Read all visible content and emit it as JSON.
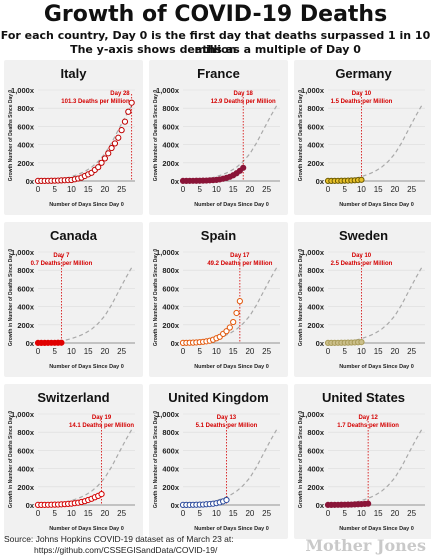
{
  "header": {
    "title": "Growth of COVID-19 Deaths",
    "subtitle_1": "For each country, Day 0 is the first day that deaths surpassed 1 in 10 million",
    "subtitle_2": "The y-axis shows deaths as a multiple of Day 0"
  },
  "footer": {
    "source_line_1": "Source: Johns Hopkins COVID-19 dataset as of March 23 at:",
    "source_line_2": "https://github.com/CSSEGISandData/COVID-19/",
    "brand": "Mother Jones"
  },
  "colors": {
    "marker": "#d40000",
    "reference_curve": "#aaaaaa",
    "panel_background": "#f1f1f1"
  },
  "chart_data": [
    {
      "type": "scatter",
      "title": "Italy",
      "xlabel": "Number of Days Since Day 0",
      "ylabel": "Growth Number of Deaths Since Day 0",
      "xlim": [
        0,
        29
      ],
      "ylim": [
        0,
        1000
      ],
      "xticks": [
        0,
        5,
        10,
        15,
        20,
        25
      ],
      "yticks": [
        0,
        200,
        400,
        600,
        800,
        1000
      ],
      "ytick_labels": [
        "0x",
        "200x",
        "400x",
        "600x",
        "800x",
        "1,000x"
      ],
      "annotation_day": "Day 28",
      "annotation_text": "101.3 Deaths per Million",
      "marker_color": "#c00000",
      "marker_fill": "#ffffff",
      "series": [
        {
          "x": [
            0,
            1,
            2,
            3,
            4,
            5,
            6,
            7,
            8,
            9,
            10,
            11,
            12,
            13,
            14,
            15,
            16,
            17,
            18,
            19,
            20,
            21,
            22,
            23,
            24,
            25,
            26,
            27,
            28
          ],
          "y": [
            1,
            1.2,
            1.6,
            1.9,
            2.5,
            3.4,
            5,
            6.5,
            8.5,
            10,
            11,
            19,
            27,
            37,
            55,
            73,
            90,
            122,
            152,
            200,
            248,
            304,
            362,
            413,
            475,
            559,
            652,
            761,
            860
          ]
        }
      ]
    },
    {
      "type": "scatter",
      "title": "France",
      "xlabel": "Number of Days Since Day 0",
      "ylabel": "Growth Number of Deaths Since Day 0",
      "xlim": [
        0,
        29
      ],
      "ylim": [
        0,
        1000
      ],
      "xticks": [
        0,
        5,
        10,
        15,
        20,
        25
      ],
      "yticks": [
        0,
        200,
        400,
        600,
        800,
        1000
      ],
      "ytick_labels": [
        "0x",
        "200x",
        "400x",
        "600x",
        "800x",
        "1,000x"
      ],
      "annotation_day": "Day 18",
      "annotation_text": "12.9 Deaths per Million",
      "marker_color": "#8a1538",
      "marker_fill": "#8a1538",
      "series": [
        {
          "x": [
            0,
            1,
            2,
            3,
            4,
            5,
            6,
            7,
            8,
            9,
            10,
            11,
            12,
            13,
            14,
            15,
            16,
            17,
            18
          ],
          "y": [
            1,
            1.2,
            1.5,
            2,
            2.5,
            3,
            4,
            5,
            7,
            9,
            12,
            17,
            25,
            34,
            46,
            63,
            85,
            112,
            145
          ]
        }
      ]
    },
    {
      "type": "scatter",
      "title": "Germany",
      "xlabel": "Number of Days Since Day 0",
      "ylabel": "Growth Number of Deaths Since Day 0",
      "xlim": [
        0,
        29
      ],
      "ylim": [
        0,
        1000
      ],
      "xticks": [
        0,
        5,
        10,
        15,
        20,
        25
      ],
      "yticks": [
        0,
        200,
        400,
        600,
        800,
        1000
      ],
      "ytick_labels": [
        "0x",
        "200x",
        "400x",
        "600x",
        "800x",
        "1,000x"
      ],
      "annotation_day": "Day 10",
      "annotation_text": "1.5 Deaths per Million",
      "marker_color": "#6b5a00",
      "marker_fill": "#e8c12c",
      "series": [
        {
          "x": [
            0,
            1,
            2,
            3,
            4,
            5,
            6,
            7,
            8,
            9,
            10
          ],
          "y": [
            1,
            1.3,
            1.6,
            2,
            2.6,
            3.3,
            4.4,
            5.7,
            7.5,
            10,
            13
          ]
        }
      ]
    },
    {
      "type": "scatter",
      "title": "Canada",
      "xlabel": "Number of Days Since Day 0",
      "ylabel": "Growth in Number of Deaths Since Day 0",
      "xlim": [
        0,
        29
      ],
      "ylim": [
        0,
        1000
      ],
      "xticks": [
        0,
        5,
        10,
        15,
        20,
        25
      ],
      "yticks": [
        0,
        200,
        400,
        600,
        800,
        1000
      ],
      "ytick_labels": [
        "0x",
        "200x",
        "400x",
        "600x",
        "800x",
        "1,000x"
      ],
      "annotation_day": "Day 7",
      "annotation_text": "0.7 Deaths per Million",
      "marker_color": "#e00000",
      "marker_fill": "#e00000",
      "series": [
        {
          "x": [
            0,
            1,
            2,
            3,
            4,
            5,
            6,
            7
          ],
          "y": [
            1,
            1,
            1.3,
            1.5,
            1.8,
            2.2,
            2.6,
            3
          ]
        }
      ]
    },
    {
      "type": "scatter",
      "title": "Spain",
      "xlabel": "Number of Days Since Day 0",
      "ylabel": "Growth in Number of Deaths Since Day 0",
      "xlim": [
        0,
        29
      ],
      "ylim": [
        0,
        1000
      ],
      "xticks": [
        0,
        5,
        10,
        15,
        20,
        25
      ],
      "yticks": [
        0,
        200,
        400,
        600,
        800,
        1000
      ],
      "ytick_labels": [
        "0x",
        "200x",
        "400x",
        "600x",
        "800x",
        "1,000x"
      ],
      "annotation_day": "Day 17",
      "annotation_text": "49.2 Deaths per Million",
      "marker_color": "#e2570a",
      "marker_fill": "#ffffff",
      "series": [
        {
          "x": [
            0,
            1,
            2,
            3,
            4,
            5,
            6,
            7,
            8,
            9,
            10,
            11,
            12,
            13,
            14,
            15,
            16,
            17
          ],
          "y": [
            1,
            2,
            3,
            4,
            6,
            9,
            13,
            18,
            25,
            36,
            52,
            68,
            100,
            130,
            170,
            230,
            330,
            460
          ]
        }
      ]
    },
    {
      "type": "scatter",
      "title": "Sweden",
      "xlabel": "Number of Days Since Day 0",
      "ylabel": "Growth in Number of Deaths Since Day 0",
      "xlim": [
        0,
        29
      ],
      "ylim": [
        0,
        1000
      ],
      "xticks": [
        0,
        5,
        10,
        15,
        20,
        25
      ],
      "yticks": [
        0,
        200,
        400,
        600,
        800,
        1000
      ],
      "ytick_labels": [
        "0x",
        "200x",
        "400x",
        "600x",
        "800x",
        "1,000x"
      ],
      "annotation_day": "Day 10",
      "annotation_text": "2.5 Deaths per Million",
      "marker_color": "#a89a57",
      "marker_fill": "#cbbf8a",
      "series": [
        {
          "x": [
            0,
            1,
            2,
            3,
            4,
            5,
            6,
            7,
            8,
            9,
            10
          ],
          "y": [
            1,
            1,
            1.5,
            2,
            2.5,
            3,
            4,
            5,
            6,
            8,
            10
          ]
        }
      ]
    },
    {
      "type": "scatter",
      "title": "Switzerland",
      "xlabel": "Number of Days Since Day 0",
      "ylabel": "Growth in Number of Deaths Since Day 0",
      "xlim": [
        0,
        29
      ],
      "ylim": [
        0,
        1000
      ],
      "xticks": [
        0,
        5,
        10,
        15,
        20,
        25
      ],
      "yticks": [
        0,
        200,
        400,
        600,
        800,
        1000
      ],
      "ytick_labels": [
        "0x",
        "200x",
        "400x",
        "600x",
        "800x",
        "1,000x"
      ],
      "annotation_day": "Day 19",
      "annotation_text": "14.1 Deaths per Million",
      "marker_color": "#d40000",
      "marker_fill": "#ffffff",
      "series": [
        {
          "x": [
            0,
            1,
            2,
            3,
            4,
            5,
            6,
            7,
            8,
            9,
            10,
            11,
            12,
            13,
            14,
            15,
            16,
            17,
            18,
            19
          ],
          "y": [
            1,
            1.2,
            1.5,
            2,
            3,
            4,
            5,
            7,
            9,
            12,
            15,
            20,
            25,
            33,
            42,
            55,
            68,
            85,
            100,
            120
          ]
        }
      ]
    },
    {
      "type": "scatter",
      "title": "United Kingdom",
      "xlabel": "Number of Days Since Day 0",
      "ylabel": "Growth in Number of Deaths Since Day 0",
      "xlim": [
        0,
        29
      ],
      "ylim": [
        0,
        1000
      ],
      "xticks": [
        0,
        5,
        10,
        15,
        20,
        25
      ],
      "yticks": [
        0,
        200,
        400,
        600,
        800,
        1000
      ],
      "ytick_labels": [
        "0x",
        "200x",
        "400x",
        "600x",
        "800x",
        "1,000x"
      ],
      "annotation_day": "Day 13",
      "annotation_text": "5.1 Deaths per Million",
      "marker_color": "#2b4a9c",
      "marker_fill": "#ffffff",
      "series": [
        {
          "x": [
            0,
            1,
            2,
            3,
            4,
            5,
            6,
            7,
            8,
            9,
            10,
            11,
            12,
            13
          ],
          "y": [
            1,
            1.2,
            1.5,
            2,
            3,
            4,
            5,
            8,
            10,
            14,
            20,
            28,
            40,
            55
          ]
        }
      ]
    },
    {
      "type": "scatter",
      "title": "United States",
      "xlabel": "Number of Days Since Day 0",
      "ylabel": "Growth in Number of Deaths Since Day 0",
      "xlim": [
        0,
        29
      ],
      "ylim": [
        0,
        1000
      ],
      "xticks": [
        0,
        5,
        10,
        15,
        20,
        25
      ],
      "yticks": [
        0,
        200,
        400,
        600,
        800,
        1000
      ],
      "ytick_labels": [
        "0x",
        "200x",
        "400x",
        "600x",
        "800x",
        "1,000x"
      ],
      "annotation_day": "Day 12",
      "annotation_text": "1.7 Deaths per Million",
      "marker_color": "#8a1538",
      "marker_fill": "#8a1538",
      "series": [
        {
          "x": [
            0,
            1,
            2,
            3,
            4,
            5,
            6,
            7,
            8,
            9,
            10,
            11,
            12
          ],
          "y": [
            1,
            1.2,
            1.5,
            2,
            2.5,
            3.2,
            4,
            5,
            6.5,
            8,
            10,
            12,
            15
          ]
        }
      ]
    }
  ],
  "reference_curve": {
    "x": [
      0,
      2,
      4,
      6,
      8,
      10,
      12,
      14,
      16,
      18,
      20,
      22,
      24,
      26,
      28
    ],
    "y": [
      0,
      5,
      10,
      18,
      30,
      48,
      72,
      105,
      150,
      215,
      300,
      420,
      560,
      700,
      830
    ]
  }
}
